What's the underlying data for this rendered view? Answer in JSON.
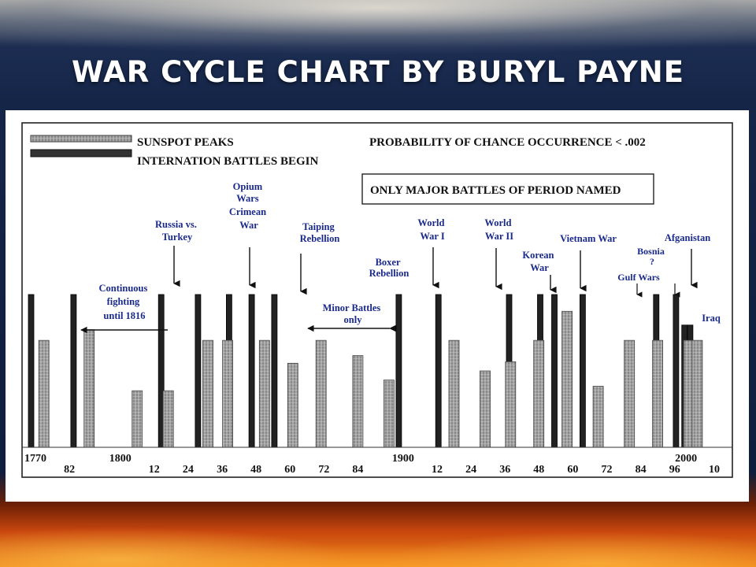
{
  "slide": {
    "title": "WAR CYCLE CHART BY BURYL PAYNE"
  },
  "chart_data": {
    "type": "bar",
    "legend": {
      "sunspot": "SUNSPOT PEAKS",
      "battles": "INTERNATION BATTLES BEGIN"
    },
    "probability_note": "PROBABILITY OF CHANCE OCCURRENCE < .002",
    "boxed_note": "ONLY MAJOR BATTLES OF PERIOD NAMED",
    "x_ticks": [
      {
        "label": "1770",
        "x": 1770
      },
      {
        "label": "82",
        "x": 1782
      },
      {
        "label": "1800",
        "x": 1800
      },
      {
        "label": "12",
        "x": 1812
      },
      {
        "label": "24",
        "x": 1824
      },
      {
        "label": "36",
        "x": 1836
      },
      {
        "label": "48",
        "x": 1848
      },
      {
        "label": "60",
        "x": 1860
      },
      {
        "label": "72",
        "x": 1872
      },
      {
        "label": "84",
        "x": 1884
      },
      {
        "label": "1900",
        "x": 1900
      },
      {
        "label": "12",
        "x": 1912
      },
      {
        "label": "24",
        "x": 1924
      },
      {
        "label": "36",
        "x": 1936
      },
      {
        "label": "48",
        "x": 1948
      },
      {
        "label": "60",
        "x": 1960
      },
      {
        "label": "72",
        "x": 1972
      },
      {
        "label": "84",
        "x": 1984
      },
      {
        "label": "96",
        "x": 1996
      },
      {
        "label": "2000",
        "x": 2000
      },
      {
        "label": "10",
        "x": 2010
      }
    ],
    "series": [
      {
        "key": "battles",
        "bars": [
          {
            "x": 1770,
            "value": 100
          },
          {
            "x": 1785,
            "value": 100
          },
          {
            "x": 1816,
            "value": 100
          },
          {
            "x": 1829,
            "value": 100
          },
          {
            "x": 1840,
            "value": 100
          },
          {
            "x": 1848,
            "value": 100
          },
          {
            "x": 1856,
            "value": 100
          },
          {
            "x": 1900,
            "value": 100
          },
          {
            "x": 1914,
            "value": 100
          },
          {
            "x": 1939,
            "value": 100
          },
          {
            "x": 1950,
            "value": 100
          },
          {
            "x": 1955,
            "value": 100
          },
          {
            "x": 1965,
            "value": 100
          },
          {
            "x": 1991,
            "value": 100
          },
          {
            "x": 1998,
            "value": 100
          },
          {
            "x": 2001,
            "value": 80
          },
          {
            "x": 2003,
            "value": 80
          }
        ]
      },
      {
        "key": "sunspot",
        "bars": [
          {
            "x": 1772,
            "value": 70
          },
          {
            "x": 1788,
            "value": 77
          },
          {
            "x": 1805,
            "value": 37
          },
          {
            "x": 1816,
            "value": 37
          },
          {
            "x": 1830,
            "value": 70
          },
          {
            "x": 1837,
            "value": 70
          },
          {
            "x": 1850,
            "value": 70
          },
          {
            "x": 1860,
            "value": 55
          },
          {
            "x": 1870,
            "value": 70
          },
          {
            "x": 1883,
            "value": 60
          },
          {
            "x": 1894,
            "value": 44
          },
          {
            "x": 1917,
            "value": 70
          },
          {
            "x": 1928,
            "value": 50
          },
          {
            "x": 1937,
            "value": 56
          },
          {
            "x": 1947,
            "value": 70
          },
          {
            "x": 1957,
            "value": 89
          },
          {
            "x": 1968,
            "value": 40
          },
          {
            "x": 1979,
            "value": 70
          },
          {
            "x": 1989,
            "value": 70
          },
          {
            "x": 2000,
            "value": 70
          },
          {
            "x": 2003,
            "value": 70
          }
        ]
      }
    ],
    "annotations": {
      "continuous": [
        "Continuous",
        "fighting",
        "until 1816"
      ],
      "russia": [
        "Russia vs.",
        "Turkey"
      ],
      "opium": [
        "Opium",
        "Wars",
        "Crimean",
        "War"
      ],
      "taiping": [
        "Taiping",
        "Rebellion"
      ],
      "minor": [
        "Minor Battles",
        "only"
      ],
      "boxer": [
        "Boxer",
        "Rebellion"
      ],
      "ww1": [
        "World",
        "War I"
      ],
      "ww2": [
        "World",
        "War II"
      ],
      "korean": [
        "Korean",
        "War"
      ],
      "vietnam": [
        "Vietnam War"
      ],
      "bosnia": [
        "Bosnia",
        "?"
      ],
      "gulf": [
        "Gulf Wars"
      ],
      "afghanistan": [
        "Afganistan"
      ],
      "iraq": [
        "Iraq"
      ]
    },
    "colors": {
      "battle_bar": "#222222",
      "sunspot_bar": "#8a8a8a",
      "annotation": "#1a2a8a"
    }
  }
}
